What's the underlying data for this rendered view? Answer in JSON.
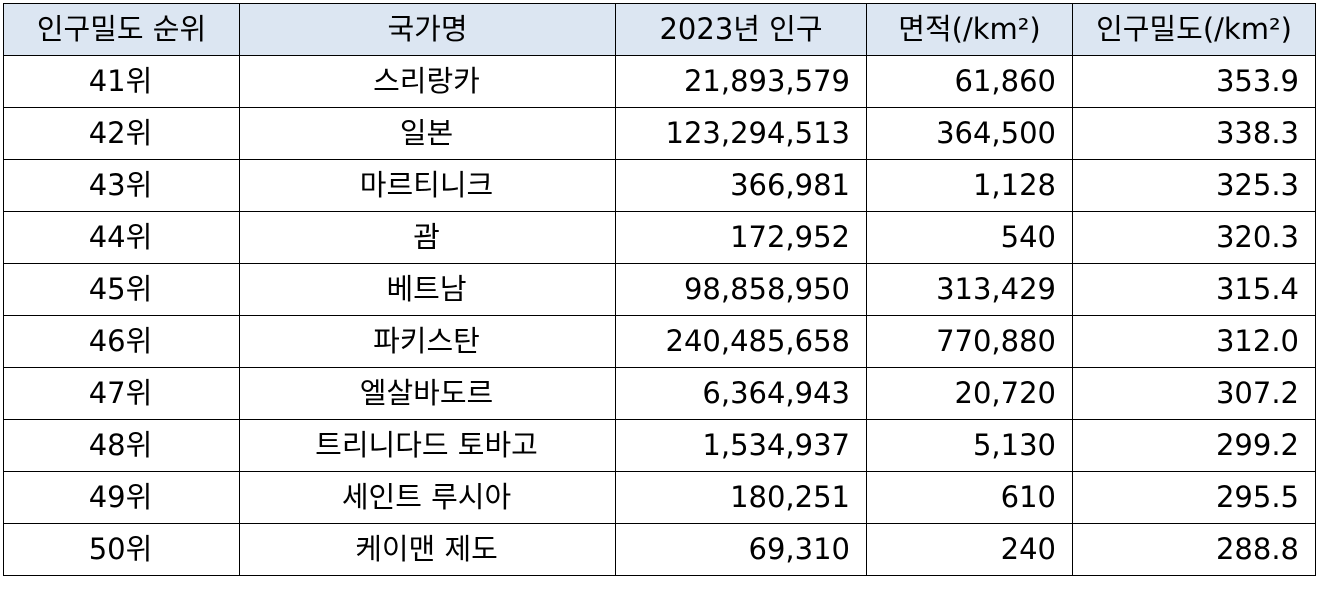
{
  "table": {
    "headers": [
      "인구밀도 순위",
      "국가명",
      "2023년 인구",
      "면적(/km²)",
      "인구밀도(/km²)"
    ],
    "rows": [
      {
        "rank": "41위",
        "country": "스리랑카",
        "population": "21,893,579",
        "area": "61,860",
        "density": "353.9"
      },
      {
        "rank": "42위",
        "country": "일본",
        "population": "123,294,513",
        "area": "364,500",
        "density": "338.3"
      },
      {
        "rank": "43위",
        "country": "마르티니크",
        "population": "366,981",
        "area": "1,128",
        "density": "325.3"
      },
      {
        "rank": "44위",
        "country": "괌",
        "population": "172,952",
        "area": "540",
        "density": "320.3"
      },
      {
        "rank": "45위",
        "country": "베트남",
        "population": "98,858,950",
        "area": "313,429",
        "density": "315.4"
      },
      {
        "rank": "46위",
        "country": "파키스탄",
        "population": "240,485,658",
        "area": "770,880",
        "density": "312.0"
      },
      {
        "rank": "47위",
        "country": "엘살바도르",
        "population": "6,364,943",
        "area": "20,720",
        "density": "307.2"
      },
      {
        "rank": "48위",
        "country": "트리니다드 토바고",
        "population": "1,534,937",
        "area": "5,130",
        "density": "299.2"
      },
      {
        "rank": "49위",
        "country": "세인트 루시아",
        "population": "180,251",
        "area": "610",
        "density": "295.5"
      },
      {
        "rank": "50위",
        "country": "케이맨 제도",
        "population": "69,310",
        "area": "240",
        "density": "288.8"
      }
    ]
  },
  "colors": {
    "header_bg": "#dce6f2",
    "border": "#000000"
  }
}
